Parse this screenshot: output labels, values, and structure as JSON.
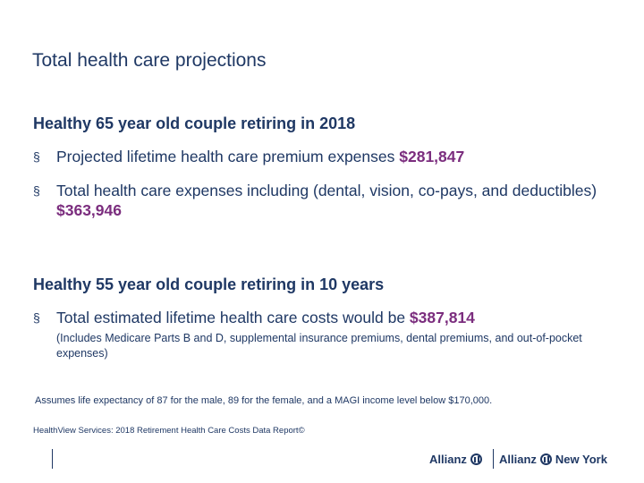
{
  "slide": {
    "title": "Total health care projections",
    "section1": {
      "heading": "Healthy 65 year old couple retiring in 2018",
      "bullets": [
        {
          "marker": "§",
          "text": "Projected lifetime health care premium expenses ",
          "amount": "$281,847"
        },
        {
          "marker": "§",
          "text": "Total health care expenses including (dental, vision, co-pays, and deductibles) ",
          "amount": "$363,946"
        }
      ]
    },
    "section2": {
      "heading": "Healthy 55 year old couple retiring in 10 years",
      "bullets": [
        {
          "marker": "§",
          "text": "Total estimated lifetime health care costs would be ",
          "amount": "$387,814"
        }
      ],
      "note": "(Includes Medicare Parts B and D, supplemental insurance premiums, dental premiums, and out-of-pocket expenses)"
    },
    "assumption": "Assumes life expectancy of 87 for the male, 89 for the female, and a MAGI income level below $170,000.",
    "source": "HealthView Services: 2018 Retirement Health Care Costs Data Report©",
    "logos": {
      "primary": "Allianz",
      "secondary": "Allianz",
      "secondary_suffix": "New York"
    }
  }
}
